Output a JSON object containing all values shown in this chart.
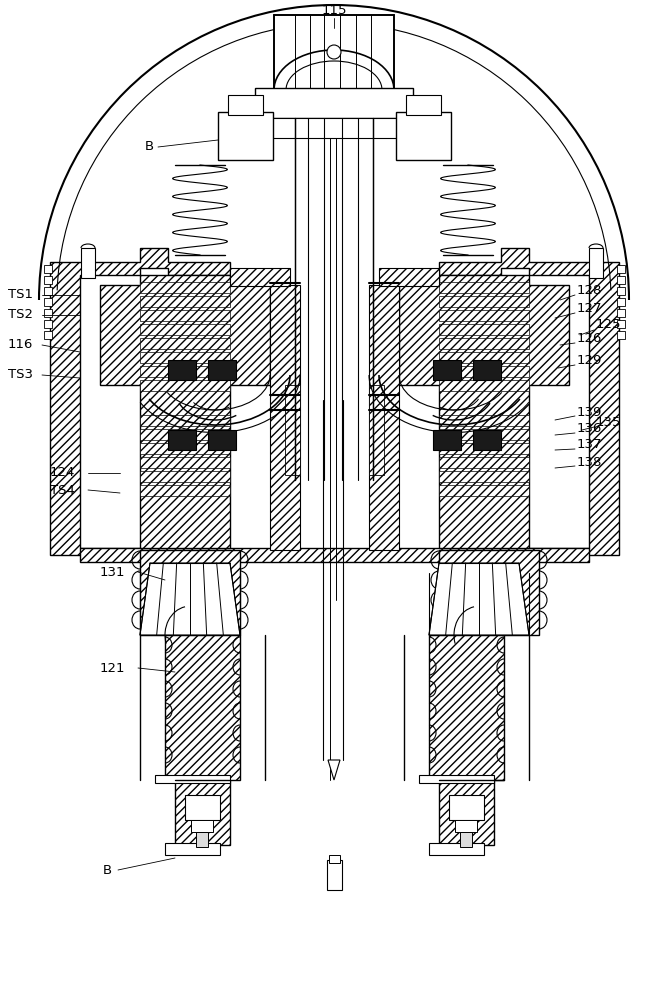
{
  "bg": "#ffffff",
  "lc": "#000000",
  "fig_w": 6.69,
  "fig_h": 10.0,
  "dpi": 100,
  "labels_left": [
    [
      "115",
      315,
      12
    ],
    [
      "B",
      143,
      148
    ],
    [
      "TS1",
      10,
      300
    ],
    [
      "TS2",
      10,
      318
    ],
    [
      "116",
      10,
      348
    ],
    [
      "TS3",
      10,
      378
    ],
    [
      "124",
      55,
      474
    ],
    [
      "TS4",
      55,
      490
    ],
    [
      "131",
      108,
      572
    ],
    [
      "121",
      108,
      668
    ],
    [
      "B",
      108,
      872
    ]
  ],
  "labels_right": [
    [
      "128",
      578,
      295
    ],
    [
      "127",
      578,
      313
    ],
    [
      "125",
      596,
      328
    ],
    [
      "126",
      578,
      341
    ],
    [
      "129",
      578,
      365
    ],
    [
      "139",
      578,
      415
    ],
    [
      "136",
      578,
      432
    ],
    [
      "135",
      596,
      425
    ],
    [
      "137",
      578,
      449
    ],
    [
      "138",
      578,
      465
    ]
  ]
}
